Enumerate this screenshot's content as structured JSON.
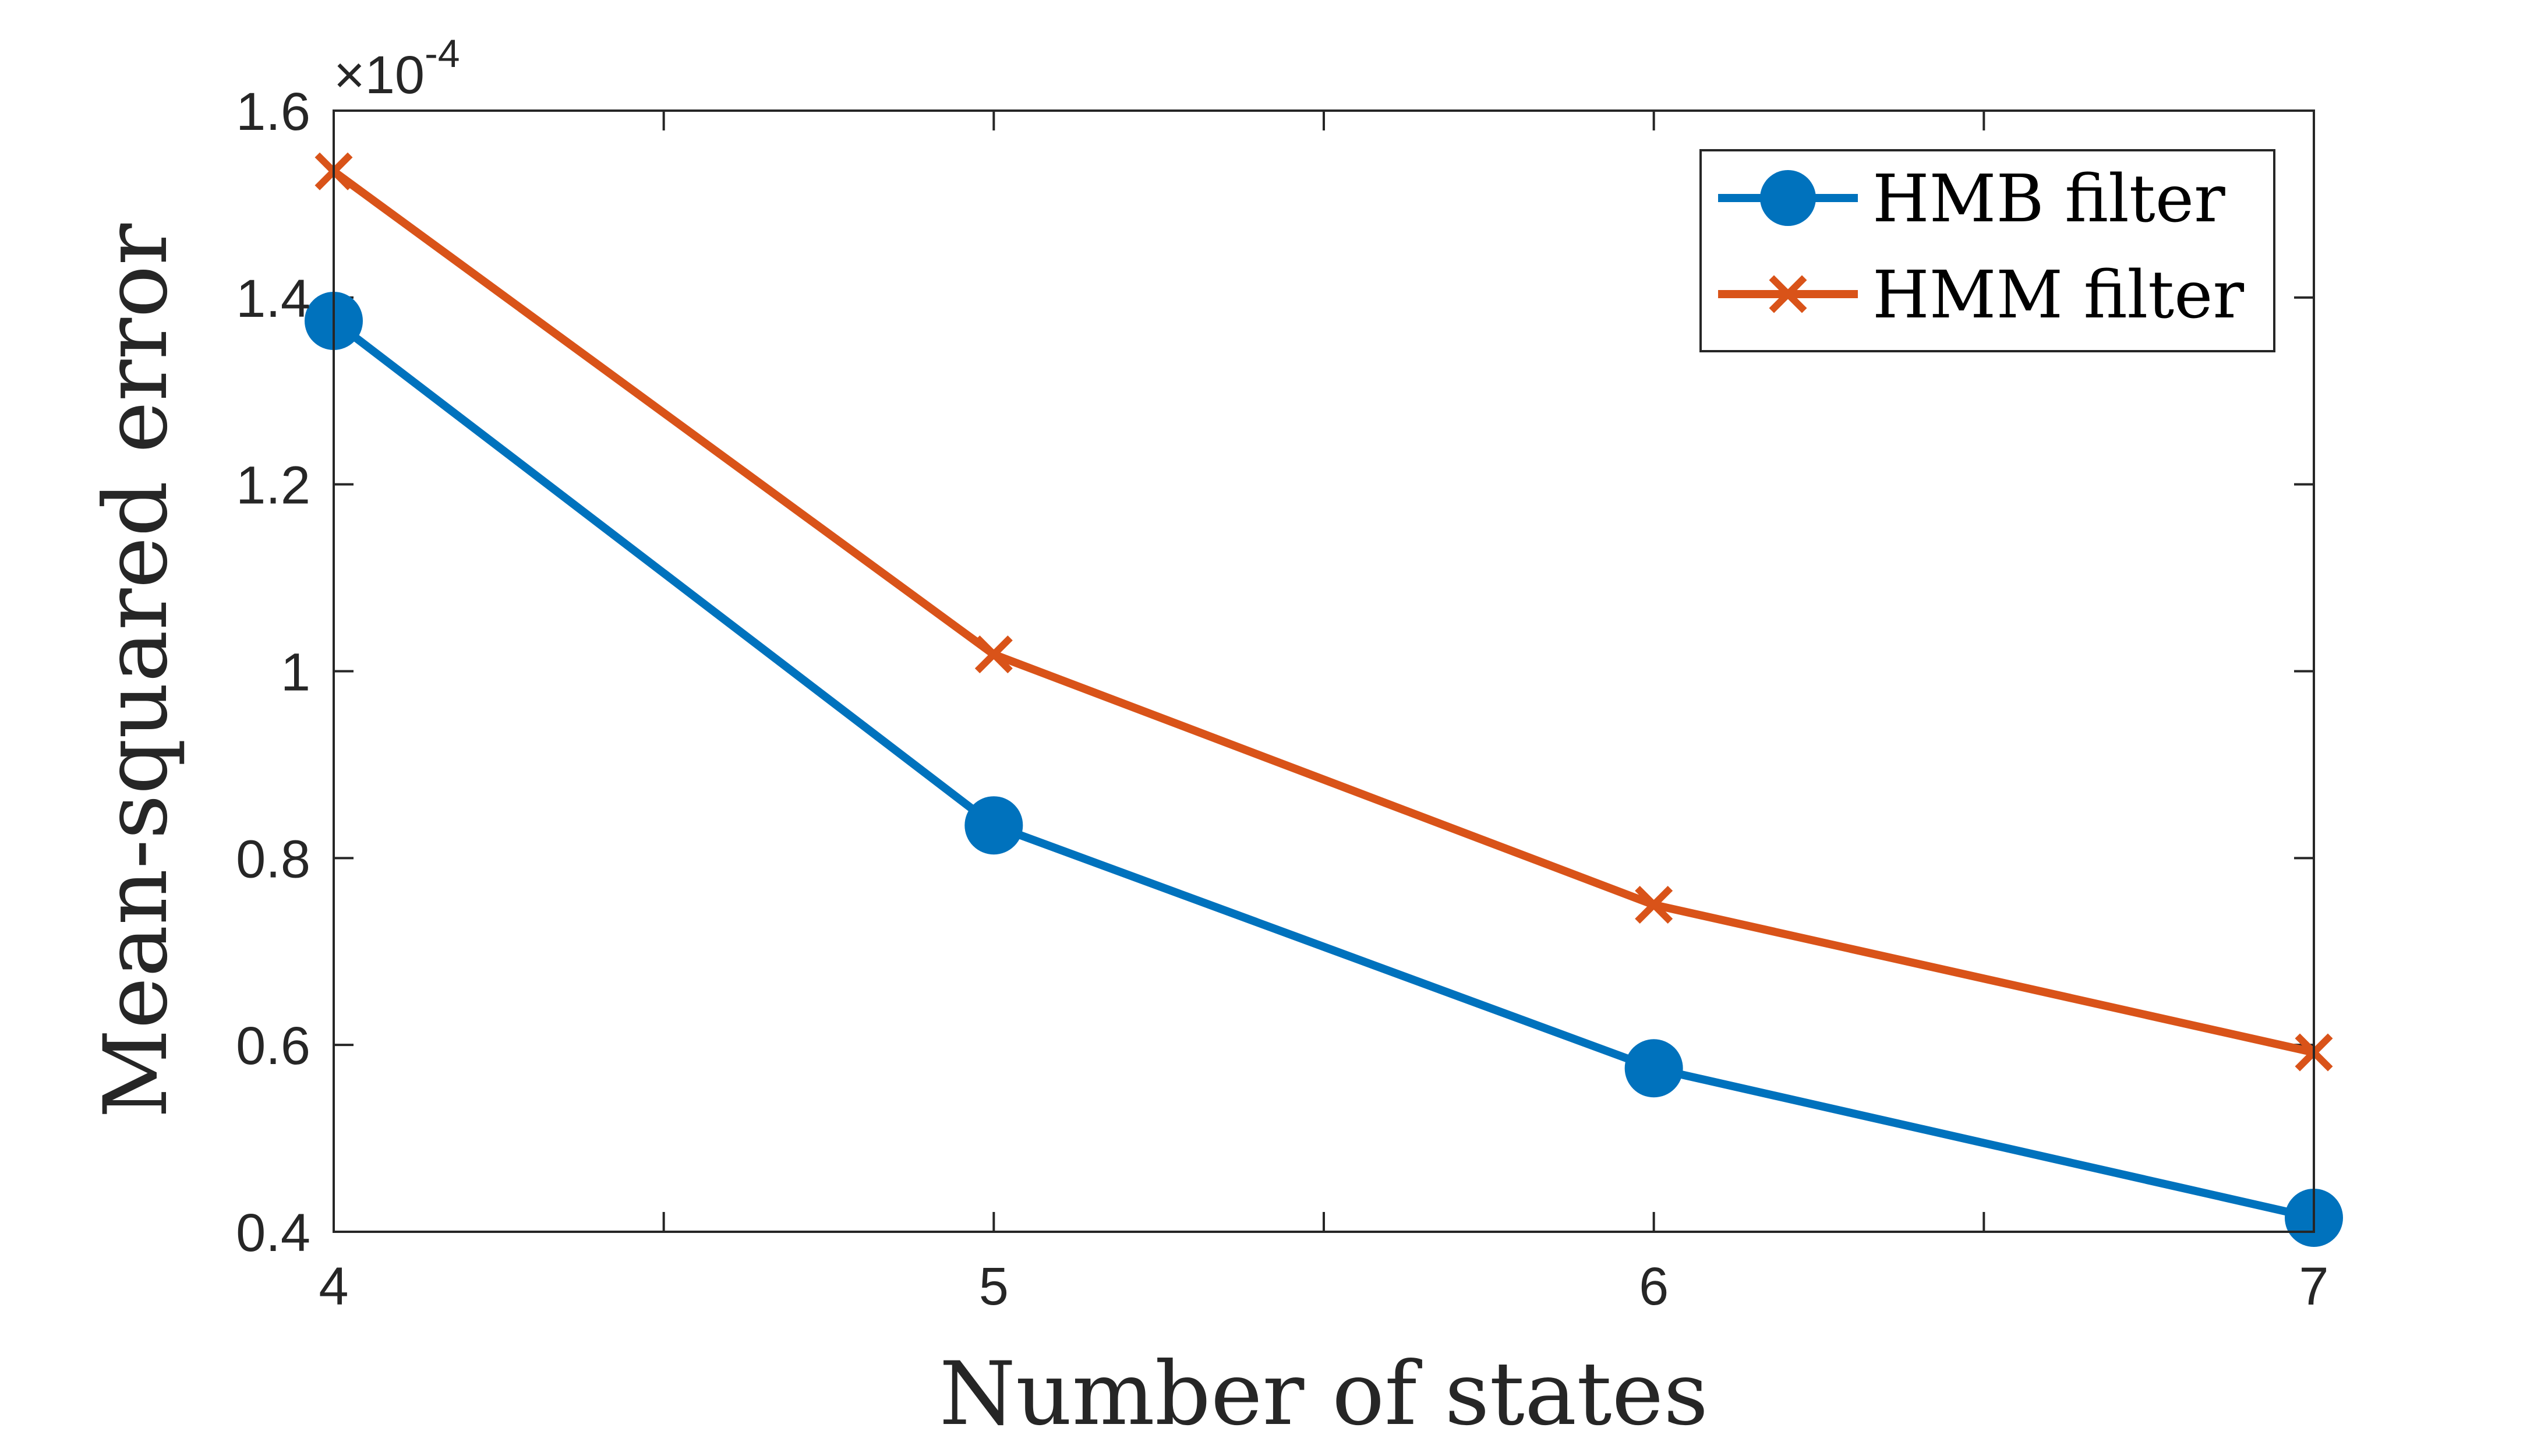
{
  "chart_data": {
    "type": "line",
    "title": "",
    "xlabel": "Number of states",
    "ylabel": "Mean-squared error",
    "y_exponent": {
      "base": "×10",
      "power": "-4"
    },
    "x": [
      4,
      5,
      6,
      7
    ],
    "xlim": [
      4,
      7
    ],
    "ylim": [
      0.4,
      1.6
    ],
    "x_ticks": [
      4,
      5,
      6,
      7
    ],
    "x_tick_labels": [
      "4",
      "5",
      "6",
      "7"
    ],
    "x_minor_ticks": [
      4.5,
      5.5,
      6.5
    ],
    "y_ticks": [
      0.4,
      0.6,
      0.8,
      1.0,
      1.2,
      1.4,
      1.6
    ],
    "y_tick_labels": [
      "0.4",
      "0.6",
      "0.8",
      "1",
      "1.2",
      "1.4",
      "1.6"
    ],
    "grid": false,
    "legend_position": "top-right",
    "series": [
      {
        "name": "HMB filter",
        "values": [
          1.375,
          0.835,
          0.575,
          0.415
        ],
        "color": "#0072BD",
        "marker": "circle"
      },
      {
        "name": "HMM filter",
        "values": [
          1.535,
          1.018,
          0.75,
          0.592
        ],
        "color": "#D95319",
        "marker": "cross"
      }
    ]
  }
}
